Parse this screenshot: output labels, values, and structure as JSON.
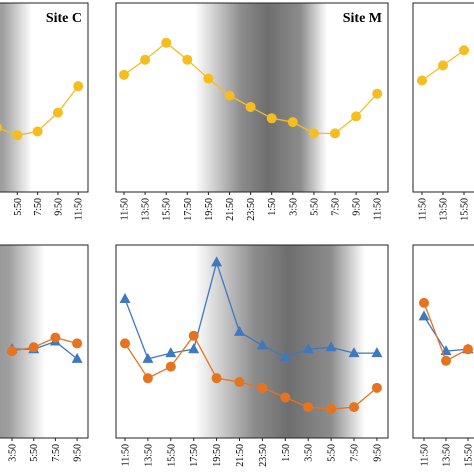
{
  "chart_data": [
    {
      "type": "line",
      "title": "Site C",
      "categories": [
        null,
        "5:50",
        "7:50",
        "9:50",
        "11:50"
      ],
      "ylim": [
        0,
        100
      ],
      "series": [
        {
          "color": "#f5bd1f",
          "marker": "circle",
          "values": [
            34,
            30,
            32,
            42,
            56
          ]
        }
      ]
    },
    {
      "type": "line",
      "title": "Site M",
      "categories": [
        "11:50",
        "13:50",
        "15:50",
        "17:50",
        "19:50",
        "21:50",
        "23:50",
        "1:50",
        "3:50",
        "5:50",
        "7:50",
        "9:50",
        "11:50"
      ],
      "ylim": [
        0,
        100
      ],
      "series": [
        {
          "color": "#f5bd1f",
          "marker": "circle",
          "values": [
            62,
            70,
            79,
            70,
            60,
            51,
            45,
            39,
            37,
            31,
            31,
            40,
            52
          ]
        }
      ]
    },
    {
      "type": "line",
      "categories": [
        "11:50",
        "13:50",
        "15:50"
      ],
      "ylim": [
        0,
        100
      ],
      "series": [
        {
          "color": "#f5bd1f",
          "marker": "circle",
          "values": [
            59,
            67,
            75
          ]
        }
      ]
    },
    {
      "type": "line",
      "categories": [
        "3:50",
        "5:50",
        "7:50",
        "9:50"
      ],
      "ylim": [
        0,
        100
      ],
      "series": [
        {
          "color": "#3f78bf",
          "marker": "triangle",
          "values": [
            46,
            46,
            50,
            41
          ]
        },
        {
          "color": "#e6731f",
          "marker": "circle",
          "values": [
            45,
            47,
            52,
            49
          ]
        }
      ]
    },
    {
      "type": "line",
      "categories": [
        "11:50",
        "13:50",
        "15:50",
        "17:50",
        "19:50",
        "21:50",
        "23:50",
        "1:50",
        "3:50",
        "5:50",
        "7:50",
        "9:50"
      ],
      "ylim": [
        0,
        100
      ],
      "series": [
        {
          "color": "#3f78bf",
          "marker": "triangle",
          "values": [
            72,
            41,
            44,
            46,
            91,
            55,
            48,
            42,
            46,
            47,
            44,
            44
          ]
        },
        {
          "color": "#e6731f",
          "marker": "circle",
          "values": [
            49,
            31,
            37,
            53,
            31,
            29,
            26,
            21,
            16,
            15,
            16,
            26
          ]
        }
      ]
    },
    {
      "type": "line",
      "categories": [
        "11:50",
        "13:50",
        "15:50"
      ],
      "ylim": [
        0,
        100
      ],
      "series": [
        {
          "color": "#3f78bf",
          "marker": "triangle",
          "values": [
            63,
            45,
            46
          ]
        },
        {
          "color": "#e6731f",
          "marker": "circle",
          "values": [
            70,
            40,
            46
          ]
        }
      ]
    }
  ]
}
